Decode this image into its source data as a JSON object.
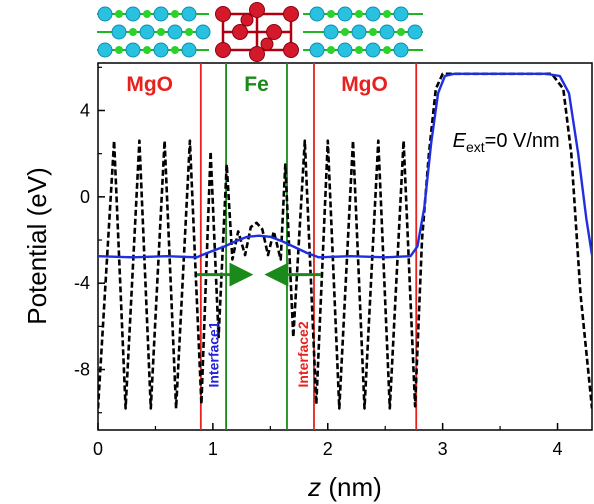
{
  "chart_data": {
    "type": "line",
    "xlabel_var": "z",
    "xlabel_unit": " (nm)",
    "ylabel": "Potential (eV)",
    "xlim": [
      0,
      4.3
    ],
    "ylim": [
      -10.8,
      6.2
    ],
    "x_ticks": [
      0,
      1,
      2,
      3,
      4
    ],
    "y_ticks": [
      4,
      0,
      -4,
      -8
    ],
    "grid": false,
    "region_labels": [
      {
        "text": "MgO",
        "x": 0.45,
        "color": "#e8211f"
      },
      {
        "text": "Fe",
        "x": 1.38,
        "color": "#1a8a1a"
      },
      {
        "text": "MgO",
        "x": 2.32,
        "color": "#e8211f"
      }
    ],
    "vertical_lines": [
      {
        "x": 0.895,
        "color": "#e8211f"
      },
      {
        "x": 1.115,
        "color": "#1a8a1a"
      },
      {
        "x": 1.645,
        "color": "#1a8a1a"
      },
      {
        "x": 1.88,
        "color": "#e8211f"
      },
      {
        "x": 2.77,
        "color": "#e8211f"
      }
    ],
    "interface_labels": [
      {
        "text": "Interface1",
        "x": 1.05,
        "y": -7.3,
        "color": "#2222dd"
      },
      {
        "text": "Interface2",
        "x": 1.83,
        "y": -7.3,
        "color": "#e8211f"
      }
    ],
    "arrows": [
      {
        "x_from": 0.86,
        "x_to": 1.3,
        "y": -3.6,
        "color": "#1a8a1a"
      },
      {
        "x_from": 1.94,
        "x_to": 1.5,
        "y": -3.6,
        "color": "#1a8a1a"
      }
    ],
    "field_label": {
      "E": "E",
      "sub": "ext",
      "rest": "=0 V/nm",
      "x": 3.0,
      "y": 2.3
    },
    "series": [
      {
        "style": "dashed",
        "color": "#000000",
        "x": [
          0.0,
          0.14,
          0.24,
          0.36,
          0.46,
          0.58,
          0.68,
          0.8,
          0.9,
          0.98,
          1.05,
          1.12,
          1.17,
          1.22,
          1.28,
          1.33,
          1.38,
          1.43,
          1.48,
          1.53,
          1.59,
          1.63,
          1.7,
          1.8,
          1.9,
          2.0,
          2.1,
          2.22,
          2.32,
          2.44,
          2.54,
          2.66,
          2.76,
          2.82,
          2.88,
          2.94,
          3.0,
          3.1,
          3.5,
          3.95,
          4.05,
          4.12,
          4.2,
          4.3
        ],
        "y": [
          -9.8,
          2.6,
          -9.8,
          2.6,
          -9.8,
          2.6,
          -9.8,
          2.6,
          -9.6,
          2.1,
          -6.5,
          1.5,
          -2.9,
          -1.6,
          -2.7,
          -1.4,
          -1.2,
          -1.5,
          -2.7,
          -1.6,
          -2.9,
          1.5,
          -6.5,
          2.6,
          -9.6,
          2.6,
          -9.8,
          2.6,
          -9.8,
          2.6,
          -9.8,
          2.6,
          -9.7,
          -2.0,
          2.0,
          5.0,
          5.7,
          5.7,
          5.7,
          5.7,
          5.0,
          2.0,
          -4.5,
          -9.8
        ]
      },
      {
        "style": "solid",
        "color": "#1f2fe0",
        "x": [
          0.0,
          0.3,
          0.6,
          0.86,
          0.95,
          1.1,
          1.2,
          1.3,
          1.4,
          1.5,
          1.6,
          1.7,
          1.82,
          1.92,
          2.2,
          2.5,
          2.72,
          2.78,
          2.84,
          2.9,
          2.96,
          3.02,
          3.1,
          3.5,
          3.9,
          4.02,
          4.1,
          4.18,
          4.25,
          4.3
        ],
        "y": [
          -2.75,
          -2.8,
          -2.75,
          -2.8,
          -2.6,
          -2.3,
          -2.05,
          -1.85,
          -1.8,
          -1.85,
          -2.05,
          -2.3,
          -2.6,
          -2.8,
          -2.75,
          -2.8,
          -2.75,
          -2.3,
          -0.5,
          2.5,
          4.8,
          5.6,
          5.7,
          5.7,
          5.7,
          5.6,
          4.8,
          2.0,
          -1.0,
          -2.7
        ]
      }
    ]
  }
}
